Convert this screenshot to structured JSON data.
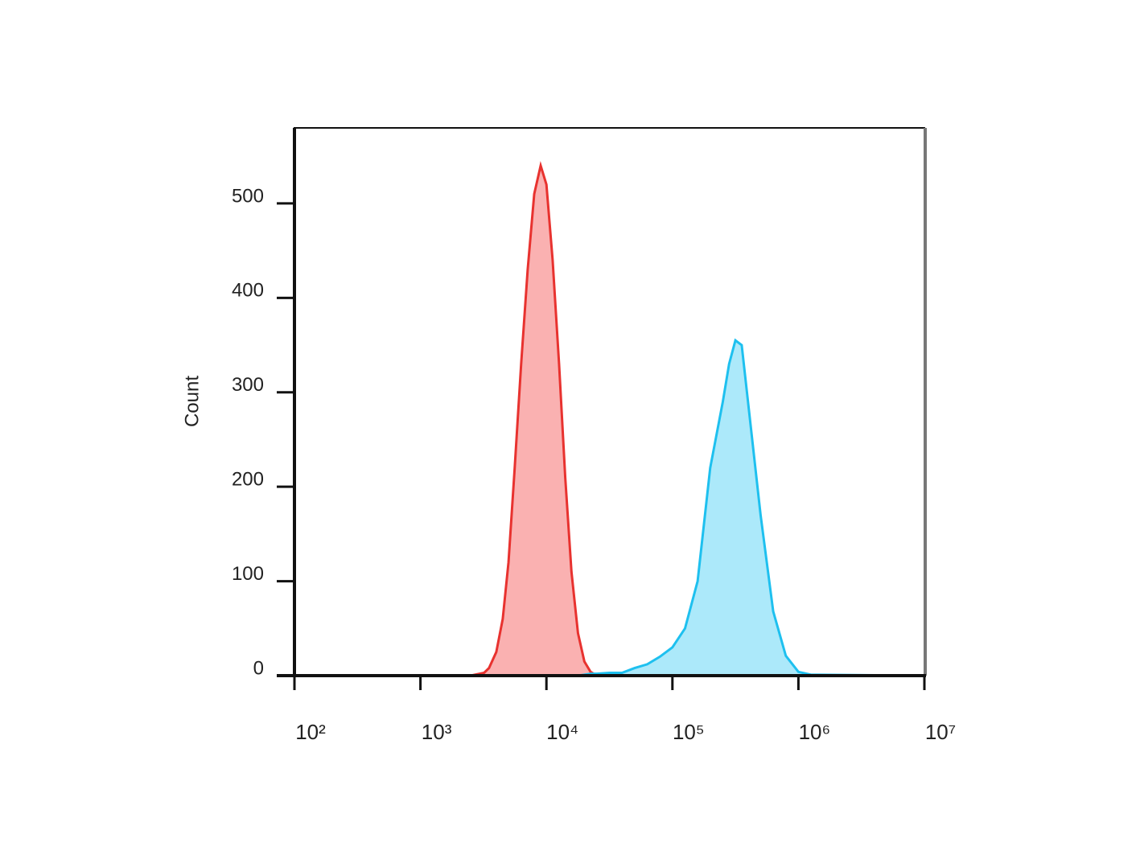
{
  "chart_data": {
    "type": "area",
    "xscale": "log",
    "ylabel": "Count",
    "x": [
      100,
      1000,
      2500,
      3200,
      3500,
      4000,
      4500,
      5000,
      5600,
      6300,
      7100,
      8000,
      9000,
      10000,
      11200,
      12600,
      14100,
      15800,
      17800,
      20000,
      22400,
      25100,
      31600,
      39800,
      50100,
      63100,
      79400,
      100000,
      125900,
      158500,
      199500,
      251200,
      281800,
      316200,
      354800,
      398100,
      446700,
      501200,
      631000,
      794300,
      1000000,
      1258900,
      10000000
    ],
    "series": [
      {
        "color": "#e8322f",
        "fill": "#f9a8a8",
        "values": [
          0,
          0,
          0,
          3,
          8,
          25,
          60,
          120,
          220,
          330,
          430,
          510,
          540,
          520,
          440,
          330,
          210,
          110,
          45,
          15,
          4,
          0,
          0,
          0,
          0,
          0,
          0,
          0,
          0,
          0,
          0,
          0,
          0,
          0,
          0,
          0,
          0,
          0,
          0,
          0,
          0,
          0,
          0
        ]
      },
      {
        "color": "#1ec0ef",
        "fill": "#a3e7f9",
        "values": [
          0,
          0,
          0,
          0,
          0,
          0,
          0,
          0,
          0,
          0,
          0,
          0,
          0,
          0,
          0,
          0,
          0,
          0,
          0,
          1,
          2,
          2,
          3,
          3,
          8,
          12,
          20,
          30,
          50,
          100,
          220,
          290,
          330,
          355,
          350,
          290,
          230,
          170,
          68,
          21,
          4,
          1,
          0
        ]
      }
    ],
    "xlim": [
      100,
      10000000
    ],
    "xticks": [
      {
        "value": 100,
        "label": "10²"
      },
      {
        "value": 1000,
        "label": "10³"
      },
      {
        "value": 10000,
        "label": "10⁴"
      },
      {
        "value": 100000,
        "label": "10⁵"
      },
      {
        "value": 1000000,
        "label": "10⁶"
      },
      {
        "value": 10000000,
        "label": "10⁷"
      }
    ],
    "ylim": [
      0,
      580
    ],
    "yticks": [
      0,
      100,
      200,
      300,
      400,
      500
    ]
  }
}
